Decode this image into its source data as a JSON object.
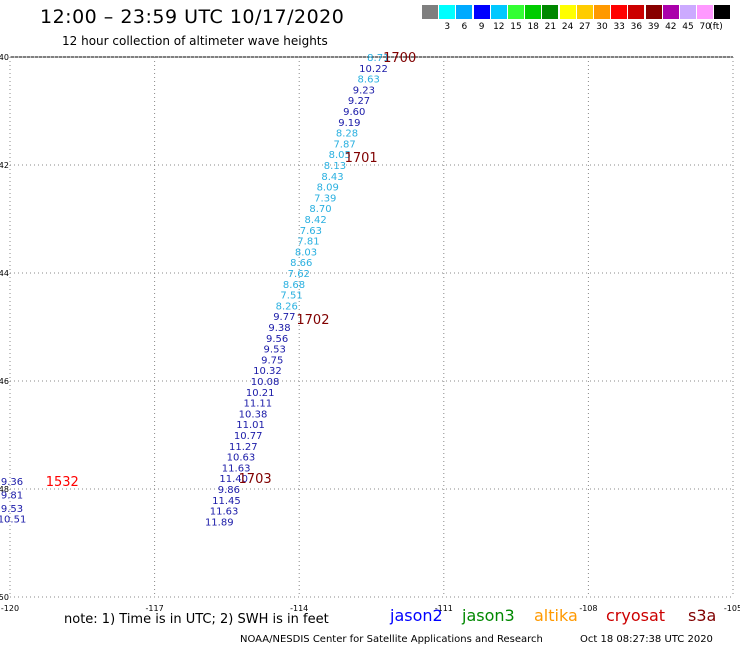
{
  "header": {
    "title": "12:00 – 23:59 UTC 10/17/2020",
    "subtitle": "12 hour collection of altimeter wave heights"
  },
  "legend": {
    "colors": [
      "#7f7f7f",
      "#00ffff",
      "#00aaff",
      "#0000ff",
      "#00c8ff",
      "#33ff33",
      "#00cc00",
      "#008800",
      "#ffff00",
      "#ffcc00",
      "#ff9900",
      "#ff0000",
      "#cc0000",
      "#880000",
      "#aa00aa",
      "#ccaaff",
      "#ff99ff",
      "#000000"
    ],
    "labels": [
      "3",
      "6",
      "9",
      "12",
      "15",
      "18",
      "21",
      "24",
      "27",
      "30",
      "33",
      "36",
      "39",
      "42",
      "45",
      "70"
    ],
    "unit": "(ft)"
  },
  "map": {
    "lon_range": [
      -120,
      -105
    ],
    "lat_range": [
      -50,
      -40
    ],
    "lon_ticks": [
      "-120",
      "-117",
      "-114",
      "-111",
      "-108",
      "-105"
    ],
    "lat_ticks": [
      "-40",
      "-42",
      "-44",
      "-46",
      "-48",
      "-50"
    ],
    "grid": "dotted"
  },
  "track_points": [
    {
      "lon": -112.4,
      "lat": -40.0,
      "swh": "8.71",
      "color": "#2ab0e0"
    },
    {
      "lon": -112.5,
      "lat": -40.2,
      "swh": "10.22",
      "color": "#1a1aa8"
    },
    {
      "lon": -112.6,
      "lat": -40.4,
      "swh": "8.63",
      "color": "#2ab0e0"
    },
    {
      "lon": -112.7,
      "lat": -40.6,
      "swh": "9.23",
      "color": "#1a1aa8"
    },
    {
      "lon": -112.8,
      "lat": -40.8,
      "swh": "9.27",
      "color": "#1a1aa8"
    },
    {
      "lon": -112.9,
      "lat": -41.0,
      "swh": "9.60",
      "color": "#1a1aa8"
    },
    {
      "lon": -113.0,
      "lat": -41.2,
      "swh": "9.19",
      "color": "#1a1aa8"
    },
    {
      "lon": -113.05,
      "lat": -41.4,
      "swh": "8.28",
      "color": "#2ab0e0"
    },
    {
      "lon": -113.1,
      "lat": -41.6,
      "swh": "7.87",
      "color": "#2ab0e0"
    },
    {
      "lon": -113.2,
      "lat": -41.8,
      "swh": "8.05",
      "color": "#2ab0e0"
    },
    {
      "lon": -113.3,
      "lat": -42.0,
      "swh": "8.13",
      "color": "#2ab0e0"
    },
    {
      "lon": -113.35,
      "lat": -42.2,
      "swh": "8.43",
      "color": "#2ab0e0"
    },
    {
      "lon": -113.45,
      "lat": -42.4,
      "swh": "8.09",
      "color": "#2ab0e0"
    },
    {
      "lon": -113.5,
      "lat": -42.6,
      "swh": "7.39",
      "color": "#2ab0e0"
    },
    {
      "lon": -113.6,
      "lat": -42.8,
      "swh": "8.70",
      "color": "#2ab0e0"
    },
    {
      "lon": -113.7,
      "lat": -43.0,
      "swh": "8.42",
      "color": "#2ab0e0"
    },
    {
      "lon": -113.8,
      "lat": -43.2,
      "swh": "7.63",
      "color": "#2ab0e0"
    },
    {
      "lon": -113.85,
      "lat": -43.4,
      "swh": "7.81",
      "color": "#2ab0e0"
    },
    {
      "lon": -113.9,
      "lat": -43.6,
      "swh": "8.03",
      "color": "#2ab0e0"
    },
    {
      "lon": -114.0,
      "lat": -43.8,
      "swh": "8.66",
      "color": "#2ab0e0"
    },
    {
      "lon": -114.05,
      "lat": -44.0,
      "swh": "7.62",
      "color": "#2ab0e0"
    },
    {
      "lon": -114.15,
      "lat": -44.2,
      "swh": "8.68",
      "color": "#2ab0e0"
    },
    {
      "lon": -114.2,
      "lat": -44.4,
      "swh": "7.51",
      "color": "#2ab0e0"
    },
    {
      "lon": -114.3,
      "lat": -44.6,
      "swh": "8.26",
      "color": "#2ab0e0"
    },
    {
      "lon": -114.35,
      "lat": -44.8,
      "swh": "9.77",
      "color": "#1a1aa8"
    },
    {
      "lon": -114.45,
      "lat": -45.0,
      "swh": "9.38",
      "color": "#1a1aa8"
    },
    {
      "lon": -114.5,
      "lat": -45.2,
      "swh": "9.56",
      "color": "#1a1aa8"
    },
    {
      "lon": -114.55,
      "lat": -45.4,
      "swh": "9.53",
      "color": "#1a1aa8"
    },
    {
      "lon": -114.6,
      "lat": -45.6,
      "swh": "9.75",
      "color": "#1a1aa8"
    },
    {
      "lon": -114.7,
      "lat": -45.8,
      "swh": "10.32",
      "color": "#1a1aa8"
    },
    {
      "lon": -114.75,
      "lat": -46.0,
      "swh": "10.08",
      "color": "#1a1aa8"
    },
    {
      "lon": -114.85,
      "lat": -46.2,
      "swh": "10.21",
      "color": "#1a1aa8"
    },
    {
      "lon": -114.9,
      "lat": -46.4,
      "swh": "11.11",
      "color": "#1a1aa8"
    },
    {
      "lon": -115.0,
      "lat": -46.6,
      "swh": "10.38",
      "color": "#1a1aa8"
    },
    {
      "lon": -115.05,
      "lat": -46.8,
      "swh": "11.01",
      "color": "#1a1aa8"
    },
    {
      "lon": -115.1,
      "lat": -47.0,
      "swh": "10.77",
      "color": "#1a1aa8"
    },
    {
      "lon": -115.2,
      "lat": -47.2,
      "swh": "11.27",
      "color": "#1a1aa8"
    },
    {
      "lon": -115.25,
      "lat": -47.4,
      "swh": "10.63",
      "color": "#1a1aa8"
    },
    {
      "lon": -115.35,
      "lat": -47.6,
      "swh": "11.63",
      "color": "#1a1aa8"
    },
    {
      "lon": -115.4,
      "lat": -47.8,
      "swh": "11.40",
      "color": "#1a1aa8"
    },
    {
      "lon": -115.5,
      "lat": -48.0,
      "swh": "9.86",
      "color": "#1a1aa8"
    },
    {
      "lon": -115.55,
      "lat": -48.2,
      "swh": "11.45",
      "color": "#1a1aa8"
    },
    {
      "lon": -115.6,
      "lat": -48.4,
      "swh": "11.63",
      "color": "#1a1aa8"
    },
    {
      "lon": -115.7,
      "lat": -48.6,
      "swh": "11.89",
      "color": "#1a1aa8"
    },
    {
      "lon": -120.0,
      "lat": -47.85,
      "swh": "9.36",
      "color": "#1a1aa8"
    },
    {
      "lon": -120.0,
      "lat": -48.1,
      "swh": "9.81",
      "color": "#1a1aa8"
    },
    {
      "lon": -120.0,
      "lat": -48.35,
      "swh": "9.53",
      "color": "#1a1aa8"
    },
    {
      "lon": -120.0,
      "lat": -48.55,
      "swh": "10.51",
      "color": "#1a1aa8"
    }
  ],
  "time_labels": [
    {
      "lon": -112.3,
      "lat": -40.0,
      "text": "1700",
      "color": "#800000"
    },
    {
      "lon": -113.1,
      "lat": -41.85,
      "text": "1701",
      "color": "#800000"
    },
    {
      "lon": -114.1,
      "lat": -44.85,
      "text": "1702",
      "color": "#800000"
    },
    {
      "lon": -115.3,
      "lat": -47.8,
      "text": "1703",
      "color": "#800000"
    },
    {
      "lon": -119.3,
      "lat": -47.85,
      "text": "1532",
      "color": "#ff0000"
    }
  ],
  "footer": {
    "note": "note: 1) Time is in UTC; 2) SWH is in feet",
    "satellites": [
      {
        "name": "jason2",
        "color": "#0000ff"
      },
      {
        "name": "jason3",
        "color": "#008800"
      },
      {
        "name": "altika",
        "color": "#ff9900"
      },
      {
        "name": "cryosat",
        "color": "#cc0000"
      },
      {
        "name": "s3a",
        "color": "#800000"
      }
    ],
    "credit": "NOAA/NESDIS Center for Satellite Applications and Research",
    "timestamp": "Oct 18 08:27:38 UTC 2020"
  }
}
